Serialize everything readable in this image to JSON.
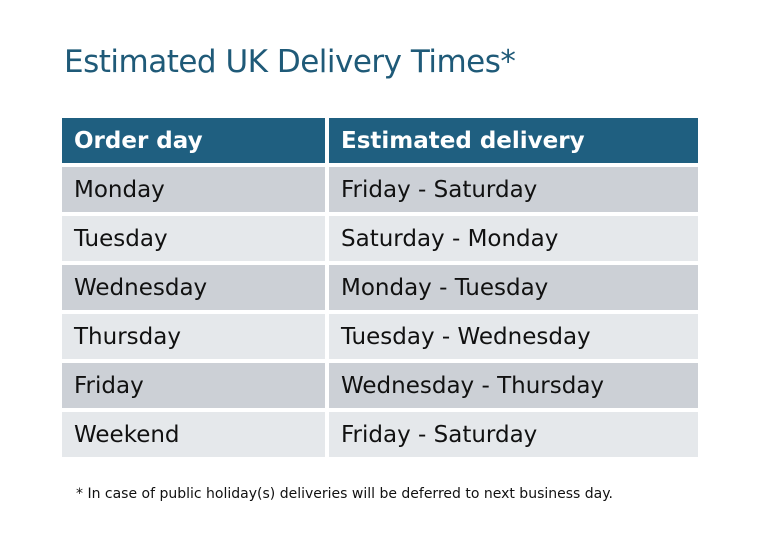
{
  "title": "Estimated UK Delivery Times*",
  "table": {
    "headers": [
      "Order day",
      "Estimated delivery"
    ],
    "rows": [
      [
        "Monday",
        "Friday - Saturday"
      ],
      [
        "Tuesday",
        "Saturday - Monday"
      ],
      [
        "Wednesday",
        "Monday - Tuesday"
      ],
      [
        "Thursday",
        "Tuesday - Wednesday"
      ],
      [
        "Friday",
        "Wednesday - Thursday"
      ],
      [
        "Weekend",
        "Friday - Saturday"
      ]
    ]
  },
  "footnote": "* In case of public holiday(s) deliveries will be deferred to next business day.",
  "colors": {
    "header": "#1f5f80",
    "title": "#1f5a78",
    "row_dark": "#ccd0d6",
    "row_light": "#e5e8eb"
  }
}
